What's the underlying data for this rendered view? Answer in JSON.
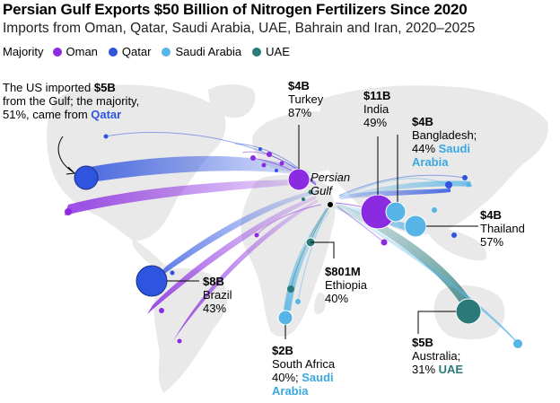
{
  "header": {
    "title": "Persian Gulf Exports $50 Billion of Nitrogen Fertilizers Since 2020",
    "subtitle": "Imports from Oman, Qatar, Saudi Arabia, UAE, Bahrain and Iran, 2020–2025"
  },
  "legend": {
    "label": "Majority",
    "items": [
      {
        "name": "Oman",
        "color": "#8a2be2"
      },
      {
        "name": "Qatar",
        "color": "#2e54e0"
      },
      {
        "name": "Saudi Arabia",
        "color": "#56b4e6"
      },
      {
        "name": "UAE",
        "color": "#2b7a7a"
      }
    ]
  },
  "origin_label": "Persian\nGulf",
  "annotations": {
    "us": {
      "line1": "The US imported ",
      "value": "$5B",
      "line2": "from the Gulf; the majority,",
      "line3_prefix": "51%, came from ",
      "majority": "Qatar"
    },
    "turkey": {
      "value": "$4B",
      "name": "Turkey",
      "share": "87%"
    },
    "india": {
      "value": "$11B",
      "name": "India",
      "share": "49%"
    },
    "bangladesh": {
      "value": "$4B",
      "name": "Bangladesh;",
      "share_prefix": "44% ",
      "majority": "Saudi Arabia"
    },
    "thailand": {
      "value": "$4B",
      "name": "Thailand",
      "share": "57%"
    },
    "brazil": {
      "value": "$8B",
      "name": "Brazil",
      "share": "43%"
    },
    "ethiopia": {
      "value": "$801M",
      "name": "Ethiopia",
      "share": "40%"
    },
    "south_africa": {
      "value": "$2B",
      "name": "South Africa",
      "share_prefix": "40%; ",
      "majority": "Saudi Arabia"
    },
    "australia": {
      "value": "$5B",
      "name": "Australia;",
      "share_prefix": "31% ",
      "majority": "UAE"
    }
  }
}
